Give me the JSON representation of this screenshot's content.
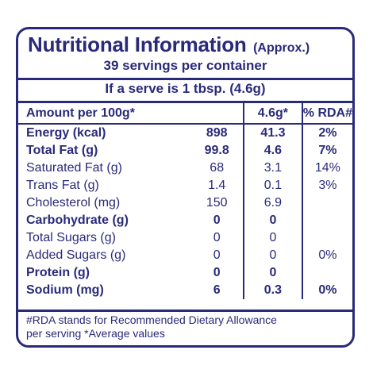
{
  "title": {
    "main": "Nutritional Information",
    "approx": "(Approx.)"
  },
  "servings_text": "39 servings per container",
  "serve_text": "If a serve is 1 tbsp. (4.6g)",
  "table_header": {
    "label": "Amount per 100g*",
    "per_100g": "",
    "per_serve": "4.6g*",
    "rda": "% RDA#"
  },
  "rows": [
    {
      "label": "Energy (kcal)",
      "per_100g": "898",
      "per_serve": "41.3",
      "rda": "2%",
      "bold": true
    },
    {
      "label": "Total Fat (g)",
      "per_100g": "99.8",
      "per_serve": "4.6",
      "rda": "7%",
      "bold": true
    },
    {
      "label": "Saturated Fat (g)",
      "per_100g": "68",
      "per_serve": "3.1",
      "rda": "14%",
      "bold": false
    },
    {
      "label": "Trans Fat (g)",
      "per_100g": "1.4",
      "per_serve": "0.1",
      "rda": "3%",
      "bold": false
    },
    {
      "label": "Cholesterol (mg)",
      "per_100g": "150",
      "per_serve": "6.9",
      "rda": "",
      "bold": false
    },
    {
      "label": "Carbohydrate (g)",
      "per_100g": "0",
      "per_serve": "0",
      "rda": "",
      "bold": true
    },
    {
      "label": "Total Sugars (g)",
      "per_100g": "0",
      "per_serve": "0",
      "rda": "",
      "bold": false
    },
    {
      "label": "Added Sugars (g)",
      "per_100g": "0",
      "per_serve": "0",
      "rda": "0%",
      "bold": false
    },
    {
      "label": "Protein (g)",
      "per_100g": "0",
      "per_serve": "0",
      "rda": "",
      "bold": true
    },
    {
      "label": "Sodium (mg)",
      "per_100g": "6",
      "per_serve": "0.3",
      "rda": "0%",
      "bold": true
    }
  ],
  "footnote": {
    "line1": "#RDA stands for Recommended Dietary Allowance",
    "line2": "per serving *Average values"
  },
  "colors": {
    "ink": "#2a2a7a",
    "background": "#ffffff"
  }
}
